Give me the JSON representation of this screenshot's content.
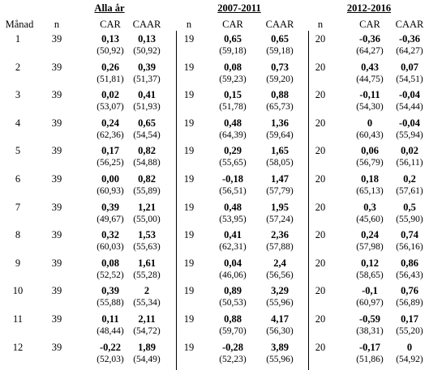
{
  "periods": [
    "Alla år",
    "2007-2011",
    "2012-2016"
  ],
  "headers": {
    "month": "Månad",
    "n": "n",
    "car": "CAR",
    "caar": "CAAR"
  },
  "rows": [
    {
      "month": "1",
      "n": [
        "39",
        "19",
        "20"
      ],
      "car": [
        "0,13",
        "0,65",
        "-0,36"
      ],
      "caar": [
        "0,13",
        "0,65",
        "-0,36"
      ],
      "car_p": [
        "(50,92)",
        "(59,18)",
        "(64,27)"
      ],
      "caar_p": [
        "(50,92)",
        "(59,18)",
        "(64,27)"
      ]
    },
    {
      "month": "2",
      "n": [
        "39",
        "19",
        "20"
      ],
      "car": [
        "0,26",
        "0,08",
        "0,43"
      ],
      "caar": [
        "0,39",
        "0,73",
        "0,07"
      ],
      "car_p": [
        "(51,81)",
        "(59,23)",
        "(44,75)"
      ],
      "caar_p": [
        "(51,37)",
        "(59,20)",
        "(54,51)"
      ]
    },
    {
      "month": "3",
      "n": [
        "39",
        "19",
        "20"
      ],
      "car": [
        "0,02",
        "0,15",
        "-0,11"
      ],
      "caar": [
        "0,41",
        "0,88",
        "-0,04"
      ],
      "car_p": [
        "(53,07)",
        "(51,78)",
        "(54,30)"
      ],
      "caar_p": [
        "(51,93)",
        "(65,73)",
        "(54,44)"
      ]
    },
    {
      "month": "4",
      "n": [
        "39",
        "19",
        "20"
      ],
      "car": [
        "0,24",
        "0,48",
        "0"
      ],
      "caar": [
        "0,65",
        "1,36",
        "-0,04"
      ],
      "car_p": [
        "(62,36)",
        "(64,39)",
        "(60,43)"
      ],
      "caar_p": [
        "(54,54)",
        "(59,64)",
        "(55,94)"
      ]
    },
    {
      "month": "5",
      "n": [
        "39",
        "19",
        "20"
      ],
      "car": [
        "0,17",
        "0,29",
        "0,06"
      ],
      "caar": [
        "0,82",
        "1,65",
        "0,02"
      ],
      "car_p": [
        "(56,25)",
        "(55,65)",
        "(56,79)"
      ],
      "caar_p": [
        "(54,88)",
        "(58,05)",
        "(56,11)"
      ]
    },
    {
      "month": "6",
      "n": [
        "39",
        "19",
        "20"
      ],
      "car": [
        "0,00",
        "-0,18",
        "0,18"
      ],
      "caar": [
        "0,82",
        "1,47",
        "0,2"
      ],
      "car_p": [
        "(60,93)",
        "(56,51)",
        "(65,13)"
      ],
      "caar_p": [
        "(55,89)",
        "(57,79)",
        "(57,61)"
      ]
    },
    {
      "month": "7",
      "n": [
        "39",
        "19",
        "20"
      ],
      "car": [
        "0,39",
        "0,48",
        "0,3"
      ],
      "caar": [
        "1,21",
        "1,95",
        "0,5"
      ],
      "car_p": [
        "(49,67)",
        "(53,95)",
        "(45,60)"
      ],
      "caar_p": [
        "(55,00)",
        "(57,24)",
        "(55,90)"
      ]
    },
    {
      "month": "8",
      "n": [
        "39",
        "19",
        "20"
      ],
      "car": [
        "0,32",
        "0,41",
        "0,24"
      ],
      "caar": [
        "1,53",
        "2,36",
        "0,74"
      ],
      "car_p": [
        "(60,03)",
        "(62,31)",
        "(57,98)"
      ],
      "caar_p": [
        "(55,63)",
        "(57,88)",
        "(56,16)"
      ]
    },
    {
      "month": "9",
      "n": [
        "39",
        "19",
        "20"
      ],
      "car": [
        "0,08",
        "0,04",
        "0,12"
      ],
      "caar": [
        "1,61",
        "2,4",
        "0,86"
      ],
      "car_p": [
        "(52,52)",
        "(46,06)",
        "(58,65)"
      ],
      "caar_p": [
        "(55,28)",
        "(56,56)",
        "(56,43)"
      ]
    },
    {
      "month": "10",
      "n": [
        "39",
        "19",
        "20"
      ],
      "car": [
        "0,39",
        "0,89",
        "-0,1"
      ],
      "caar": [
        "2",
        "3,29",
        "0,76"
      ],
      "car_p": [
        "(55,88)",
        "(50,53)",
        "(60,97)"
      ],
      "caar_p": [
        "(55,34)",
        "(55,96)",
        "(56,89)"
      ]
    },
    {
      "month": "11",
      "n": [
        "39",
        "19",
        "20"
      ],
      "car": [
        "0,11",
        "0,88",
        "-0,59"
      ],
      "caar": [
        "2,11",
        "4,17",
        "0,17"
      ],
      "car_p": [
        "(48,44)",
        "(59,70)",
        "(38,31)"
      ],
      "caar_p": [
        "(54,72)",
        "(56,30)",
        "(55,20)"
      ]
    },
    {
      "month": "12",
      "n": [
        "39",
        "19",
        "20"
      ],
      "car": [
        "-0,22",
        "-0,28",
        "-0,17"
      ],
      "caar": [
        "1,89",
        "3,89",
        "0"
      ],
      "car_p": [
        "(52,03)",
        "(52,23)",
        "(51,86)"
      ],
      "caar_p": [
        "(54,49)",
        "(55,96)",
        "(54,92)"
      ]
    }
  ]
}
